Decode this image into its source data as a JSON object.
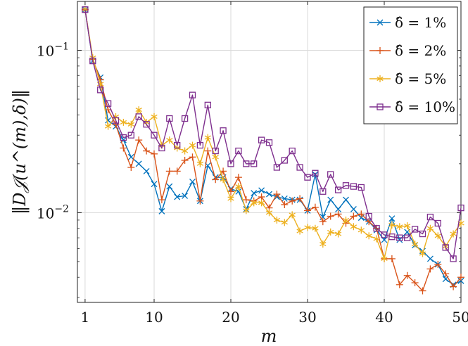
{
  "chart_data": {
    "type": "line",
    "title": "",
    "xlabel": "m",
    "ylabel": "‖D𝒥(u^(m),δ)‖",
    "xlim": [
      0,
      50
    ],
    "ylim": [
      0.0028,
      0.2
    ],
    "yscale": "log",
    "grid": true,
    "legend_position": "top-right",
    "x_ticks": [
      1,
      10,
      20,
      30,
      40,
      50
    ],
    "x_tick_labels": [
      "1",
      "10",
      "20",
      "30",
      "40",
      "50"
    ],
    "y_ticks": [
      0.1,
      0.01
    ],
    "y_tick_labels": [
      "10^−1",
      "10^−2"
    ],
    "series": [
      {
        "name": "δ̂ = 1%",
        "color": "#0072bd",
        "marker": "x",
        "x": [
          1,
          2,
          3,
          4,
          5,
          6,
          7,
          8,
          9,
          10,
          11,
          12,
          13,
          14,
          15,
          16,
          17,
          18,
          19,
          20,
          21,
          22,
          23,
          24,
          25,
          26,
          27,
          28,
          29,
          30,
          31,
          32,
          33,
          34,
          35,
          36,
          37,
          38,
          39,
          40,
          41,
          42,
          43,
          44,
          45,
          46,
          47,
          48,
          49,
          50
        ],
        "values": [
          0.178,
          0.086,
          0.068,
          0.037,
          0.034,
          0.028,
          0.022,
          0.02,
          0.018,
          0.015,
          0.0102,
          0.0145,
          0.0125,
          0.0127,
          0.0155,
          0.0118,
          0.0195,
          0.0165,
          0.0165,
          0.014,
          0.0135,
          0.0105,
          0.0132,
          0.0137,
          0.013,
          0.0125,
          0.0122,
          0.012,
          0.012,
          0.0103,
          0.0172,
          0.0094,
          0.012,
          0.0105,
          0.012,
          0.0105,
          0.0093,
          0.0088,
          0.0078,
          0.0068,
          0.0092,
          0.0068,
          0.0076,
          0.0063,
          0.0058,
          0.0052,
          0.0048,
          0.0039,
          0.0036,
          0.0038
        ]
      },
      {
        "name": "δ̂ = 2%",
        "color": "#d95319",
        "marker": "+",
        "x": [
          1,
          2,
          3,
          4,
          5,
          6,
          7,
          8,
          9,
          10,
          11,
          12,
          13,
          14,
          15,
          16,
          17,
          18,
          19,
          20,
          21,
          22,
          23,
          24,
          25,
          26,
          27,
          28,
          29,
          30,
          31,
          32,
          33,
          34,
          35,
          36,
          37,
          38,
          39,
          40,
          41,
          42,
          43,
          44,
          45,
          46,
          47,
          48,
          49,
          50
        ],
        "values": [
          0.178,
          0.088,
          0.066,
          0.043,
          0.035,
          0.025,
          0.019,
          0.028,
          0.024,
          0.023,
          0.012,
          0.018,
          0.018,
          0.021,
          0.022,
          0.0118,
          0.024,
          0.016,
          0.018,
          0.0135,
          0.0165,
          0.012,
          0.0118,
          0.0125,
          0.0107,
          0.013,
          0.0112,
          0.0118,
          0.0122,
          0.0103,
          0.0108,
          0.0088,
          0.0095,
          0.0098,
          0.0086,
          0.0095,
          0.0098,
          0.0088,
          0.008,
          0.0052,
          0.0052,
          0.0036,
          0.0041,
          0.0037,
          0.0033,
          0.0045,
          0.0048,
          0.0042,
          0.0035,
          0.004
        ]
      },
      {
        "name": "δ̂ = 5%",
        "color": "#edb120",
        "marker": "*",
        "x": [
          1,
          2,
          3,
          4,
          5,
          6,
          7,
          8,
          9,
          10,
          11,
          12,
          13,
          14,
          15,
          16,
          17,
          18,
          19,
          20,
          21,
          22,
          23,
          24,
          25,
          26,
          27,
          28,
          29,
          30,
          31,
          32,
          33,
          34,
          35,
          36,
          37,
          38,
          39,
          40,
          41,
          42,
          43,
          44,
          45,
          46,
          47,
          48,
          49,
          50
        ],
        "values": [
          0.178,
          0.09,
          0.062,
          0.034,
          0.039,
          0.036,
          0.035,
          0.043,
          0.036,
          0.039,
          0.026,
          0.028,
          0.025,
          0.024,
          0.026,
          0.02,
          0.029,
          0.022,
          0.016,
          0.0122,
          0.0145,
          0.0103,
          0.0115,
          0.0115,
          0.01,
          0.009,
          0.0087,
          0.0097,
          0.0077,
          0.0081,
          0.008,
          0.0064,
          0.0076,
          0.0074,
          0.009,
          0.0082,
          0.0078,
          0.0072,
          0.0069,
          0.0052,
          0.0084,
          0.0082,
          0.0083,
          0.0064,
          0.0056,
          0.008,
          0.0072,
          0.0062,
          0.0074,
          0.0086
        ]
      },
      {
        "name": "δ̂ = 10%",
        "color": "#7e2f8e",
        "marker": "square",
        "x": [
          1,
          2,
          3,
          4,
          5,
          6,
          7,
          8,
          9,
          10,
          11,
          12,
          13,
          14,
          15,
          16,
          17,
          18,
          19,
          20,
          21,
          22,
          23,
          24,
          25,
          26,
          27,
          28,
          29,
          30,
          31,
          32,
          33,
          34,
          35,
          36,
          37,
          38,
          39,
          40,
          41,
          42,
          43,
          44,
          45,
          46,
          47,
          48,
          49,
          50
        ],
        "values": [
          0.178,
          0.086,
          0.057,
          0.047,
          0.037,
          0.029,
          0.03,
          0.039,
          0.035,
          0.03,
          0.025,
          0.038,
          0.026,
          0.038,
          0.053,
          0.026,
          0.046,
          0.024,
          0.032,
          0.02,
          0.024,
          0.02,
          0.02,
          0.028,
          0.027,
          0.019,
          0.021,
          0.024,
          0.019,
          0.0165,
          0.0175,
          0.0135,
          0.0172,
          0.0138,
          0.0147,
          0.0145,
          0.0143,
          0.0095,
          0.008,
          0.0073,
          0.0071,
          0.007,
          0.007,
          0.0079,
          0.0074,
          0.0094,
          0.0086,
          0.0061,
          0.0052,
          0.0107
        ]
      }
    ]
  }
}
